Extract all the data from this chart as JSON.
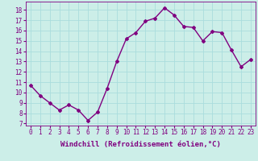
{
  "x": [
    0,
    1,
    2,
    3,
    4,
    5,
    6,
    7,
    8,
    9,
    10,
    11,
    12,
    13,
    14,
    15,
    16,
    17,
    18,
    19,
    20,
    21,
    22,
    23
  ],
  "y": [
    10.7,
    9.7,
    9.0,
    8.3,
    8.8,
    8.3,
    7.3,
    8.1,
    10.4,
    13.0,
    15.2,
    15.8,
    16.9,
    17.2,
    18.2,
    17.5,
    16.4,
    16.3,
    15.0,
    15.9,
    15.8,
    14.1,
    12.5,
    13.2
  ],
  "line_color": "#800080",
  "marker": "D",
  "marker_size": 2,
  "linewidth": 1.0,
  "xlabel": "Windchill (Refroidissement éolien,°C)",
  "xlabel_fontsize": 6.5,
  "ylabel_ticks": [
    7,
    8,
    9,
    10,
    11,
    12,
    13,
    14,
    15,
    16,
    17,
    18
  ],
  "xticks": [
    0,
    1,
    2,
    3,
    4,
    5,
    6,
    7,
    8,
    9,
    10,
    11,
    12,
    13,
    14,
    15,
    16,
    17,
    18,
    19,
    20,
    21,
    22,
    23
  ],
  "ylim": [
    6.8,
    18.8
  ],
  "xlim": [
    -0.5,
    23.5
  ],
  "bg_color": "#cceee8",
  "grid_color": "#aadddd",
  "tick_color": "#800080",
  "tick_fontsize": 5.5,
  "xlabel_fontweight": "bold"
}
